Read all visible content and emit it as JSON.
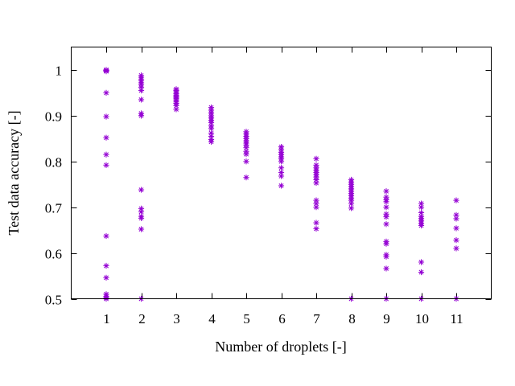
{
  "chart_data": {
    "type": "scatter",
    "xlabel": "Number of droplets [-]",
    "ylabel": "Test data accuracy [-]",
    "xlim": [
      0,
      12
    ],
    "ylim": [
      0.5,
      1.05
    ],
    "xticks": [
      1,
      2,
      3,
      4,
      5,
      6,
      7,
      8,
      9,
      10,
      11
    ],
    "yticks": [
      0.5,
      0.6,
      0.7,
      0.8,
      0.9,
      1.0
    ],
    "ytick_labels": [
      "0.5",
      "0.6",
      "0.7",
      "0.8",
      "0.9",
      "1"
    ],
    "grid": false,
    "marker": "asterisk",
    "color": "#9400d3",
    "series": [
      {
        "x": 1,
        "values": [
          1.0,
          1.0,
          0.999,
          0.998,
          0.997,
          0.95,
          0.898,
          0.852,
          0.815,
          0.792,
          0.637,
          0.572,
          0.546,
          0.51,
          0.505,
          0.502,
          0.5
        ]
      },
      {
        "x": 2,
        "values": [
          0.988,
          0.984,
          0.98,
          0.976,
          0.972,
          0.968,
          0.962,
          0.955,
          0.935,
          0.905,
          0.9,
          0.738,
          0.697,
          0.69,
          0.68,
          0.676,
          0.652,
          0.5
        ]
      },
      {
        "x": 3,
        "values": [
          0.958,
          0.955,
          0.952,
          0.948,
          0.945,
          0.942,
          0.94,
          0.937,
          0.934,
          0.93,
          0.927,
          0.922,
          0.914
        ]
      },
      {
        "x": 4,
        "values": [
          0.918,
          0.912,
          0.906,
          0.9,
          0.895,
          0.89,
          0.885,
          0.878,
          0.872,
          0.862,
          0.855,
          0.848,
          0.843
        ]
      },
      {
        "x": 5,
        "values": [
          0.865,
          0.86,
          0.855,
          0.85,
          0.845,
          0.84,
          0.836,
          0.83,
          0.822,
          0.816,
          0.8,
          0.765
        ]
      },
      {
        "x": 6,
        "values": [
          0.832,
          0.826,
          0.82,
          0.815,
          0.81,
          0.806,
          0.8,
          0.786,
          0.776,
          0.768,
          0.747
        ]
      },
      {
        "x": 7,
        "values": [
          0.806,
          0.792,
          0.786,
          0.781,
          0.776,
          0.771,
          0.766,
          0.76,
          0.753,
          0.715,
          0.708,
          0.7,
          0.666,
          0.653
        ]
      },
      {
        "x": 8,
        "values": [
          0.76,
          0.755,
          0.75,
          0.745,
          0.74,
          0.735,
          0.73,
          0.725,
          0.72,
          0.715,
          0.708,
          0.698,
          0.5
        ]
      },
      {
        "x": 9,
        "values": [
          0.735,
          0.722,
          0.716,
          0.712,
          0.7,
          0.685,
          0.679,
          0.663,
          0.625,
          0.62,
          0.596,
          0.592,
          0.566,
          0.5
        ]
      },
      {
        "x": 10,
        "values": [
          0.708,
          0.7,
          0.688,
          0.68,
          0.675,
          0.67,
          0.665,
          0.66,
          0.58,
          0.558,
          0.5
        ]
      },
      {
        "x": 11,
        "values": [
          0.715,
          0.683,
          0.675,
          0.654,
          0.628,
          0.61,
          0.5
        ]
      }
    ]
  }
}
